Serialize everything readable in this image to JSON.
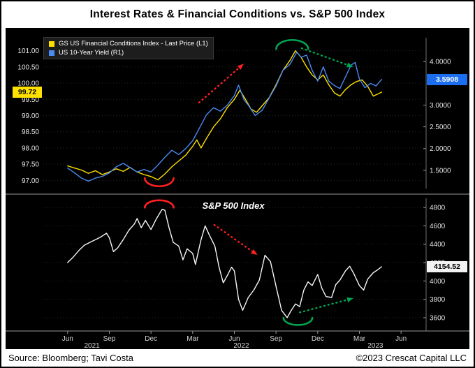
{
  "title": "Interest Rates & Financial Conditions vs. S&P 500 Index",
  "footer": {
    "source": "Source: Bloomberg; Tavi Costa",
    "copyright": "©2023 Crescat Capital LLC"
  },
  "colors": {
    "background": "#000000",
    "axis_text": "#e6e6e6",
    "fci_line": "#ffe100",
    "yield_line": "#4a8af4",
    "spx_line": "#f5f5f5",
    "fci_badge_bg": "#ffe100",
    "yield_badge_bg": "#1b6ef0",
    "spx_badge_bg": "#f2f2f2",
    "red_annotation": "#ff2020",
    "green_annotation": "#00a651"
  },
  "x_axis": {
    "unit": "months since Jun 2021",
    "min": -1.75,
    "max": 25.6,
    "tick_values": [
      0,
      3,
      6,
      9,
      12,
      15,
      18,
      21,
      24
    ],
    "tick_labels": [
      "Jun",
      "Sep",
      "Dec",
      "Mar",
      "Jun",
      "Sep",
      "Dec",
      "Mar",
      "Jun"
    ],
    "years": [
      {
        "label": "2021",
        "x": 1.75
      },
      {
        "label": "2022",
        "x": 12.5
      },
      {
        "label": "2023",
        "x": 22.15
      }
    ]
  },
  "chart_data": [
    {
      "type": "line",
      "panel": "top",
      "grid": "faint-dotted-horizontal",
      "legend_position": "top-left",
      "legend": [
        {
          "label": "GS US Financial Conditions Index - Last Price (L1)",
          "color": "#ffe100"
        },
        {
          "label": "US 10-Year Yield (R1)",
          "color": "#4a8af4"
        }
      ],
      "left_axis": {
        "min": 96.75,
        "max": 101.4,
        "tick_values": [
          101.0,
          100.5,
          100.0,
          99.5,
          99.0,
          98.5,
          98.0,
          97.5,
          97.0
        ],
        "tick_labels": [
          "101.00",
          "100.50",
          "100.00",
          "99.50",
          "99.00",
          "98.50",
          "98.00",
          "97.50",
          "97.00"
        ],
        "last_price": 99.72,
        "last_price_label": "99.72"
      },
      "right_axis": {
        "min": 1.08,
        "max": 4.55,
        "tick_values": [
          4.0,
          3.0,
          2.5,
          2.0,
          1.5
        ],
        "tick_labels": [
          "4.0000",
          "3.0000",
          "2.5000",
          "2.0000",
          "1.5000"
        ],
        "last_price": 3.5908,
        "last_price_label": "3.5908"
      },
      "series": [
        {
          "name": "GS US Financial Conditions Index - Last Price (L1)",
          "axis": "left",
          "color": "#ffe100",
          "points": [
            [
              0,
              97.45
            ],
            [
              0.5,
              97.38
            ],
            [
              1,
              97.32
            ],
            [
              1.5,
              97.22
            ],
            [
              2,
              97.3
            ],
            [
              2.5,
              97.18
            ],
            [
              3,
              97.26
            ],
            [
              3.5,
              97.36
            ],
            [
              4,
              97.28
            ],
            [
              4.5,
              97.4
            ],
            [
              5,
              97.26
            ],
            [
              5.5,
              97.18
            ],
            [
              6,
              97.12
            ],
            [
              6.5,
              97.02
            ],
            [
              7,
              97.2
            ],
            [
              7.5,
              97.42
            ],
            [
              8,
              97.6
            ],
            [
              8.5,
              97.78
            ],
            [
              9,
              98.05
            ],
            [
              9.3,
              98.25
            ],
            [
              9.6,
              98.0
            ],
            [
              10,
              98.3
            ],
            [
              10.5,
              98.65
            ],
            [
              11,
              98.9
            ],
            [
              11.5,
              99.25
            ],
            [
              12,
              99.5
            ],
            [
              12.4,
              99.78
            ],
            [
              12.8,
              99.5
            ],
            [
              13.2,
              99.2
            ],
            [
              13.6,
              99.1
            ],
            [
              14,
              99.3
            ],
            [
              14.5,
              99.55
            ],
            [
              15,
              99.95
            ],
            [
              15.5,
              100.4
            ],
            [
              16,
              100.7
            ],
            [
              16.4,
              101.0
            ],
            [
              16.8,
              100.8
            ],
            [
              17.2,
              100.5
            ],
            [
              17.6,
              100.25
            ],
            [
              18,
              100.1
            ],
            [
              18.4,
              100.25
            ],
            [
              18.8,
              99.95
            ],
            [
              19.2,
              99.7
            ],
            [
              19.6,
              99.6
            ],
            [
              20,
              99.8
            ],
            [
              20.4,
              99.95
            ],
            [
              20.8,
              100.05
            ],
            [
              21.2,
              100.1
            ],
            [
              21.6,
              99.9
            ],
            [
              22,
              99.6
            ],
            [
              22.4,
              99.68
            ],
            [
              22.6,
              99.72
            ]
          ]
        },
        {
          "name": "US 10-Year Yield (R1)",
          "axis": "right",
          "color": "#4a8af4",
          "points": [
            [
              0,
              1.55
            ],
            [
              0.5,
              1.44
            ],
            [
              1,
              1.32
            ],
            [
              1.5,
              1.25
            ],
            [
              2,
              1.32
            ],
            [
              2.5,
              1.36
            ],
            [
              3,
              1.44
            ],
            [
              3.5,
              1.58
            ],
            [
              4,
              1.66
            ],
            [
              4.5,
              1.56
            ],
            [
              5,
              1.46
            ],
            [
              5.5,
              1.52
            ],
            [
              6,
              1.46
            ],
            [
              6.5,
              1.62
            ],
            [
              7,
              1.8
            ],
            [
              7.5,
              1.96
            ],
            [
              8,
              1.86
            ],
            [
              8.5,
              2.0
            ],
            [
              9,
              2.18
            ],
            [
              9.5,
              2.48
            ],
            [
              10,
              2.78
            ],
            [
              10.5,
              2.94
            ],
            [
              11,
              2.86
            ],
            [
              11.5,
              3.0
            ],
            [
              12,
              3.22
            ],
            [
              12.3,
              3.46
            ],
            [
              12.7,
              3.12
            ],
            [
              13,
              3.0
            ],
            [
              13.5,
              2.76
            ],
            [
              14,
              2.88
            ],
            [
              14.5,
              3.16
            ],
            [
              15,
              3.44
            ],
            [
              15.5,
              3.8
            ],
            [
              16,
              3.94
            ],
            [
              16.5,
              4.22
            ],
            [
              16.8,
              4.1
            ],
            [
              17.2,
              4.15
            ],
            [
              17.6,
              3.8
            ],
            [
              18,
              3.55
            ],
            [
              18.4,
              3.88
            ],
            [
              18.8,
              3.55
            ],
            [
              19.2,
              3.45
            ],
            [
              19.6,
              3.38
            ],
            [
              20,
              3.65
            ],
            [
              20.4,
              3.92
            ],
            [
              20.7,
              3.98
            ],
            [
              21,
              3.6
            ],
            [
              21.4,
              3.4
            ],
            [
              21.8,
              3.5
            ],
            [
              22.2,
              3.44
            ],
            [
              22.6,
              3.5908
            ]
          ]
        }
      ],
      "annotations": [
        {
          "kind": "arrow",
          "color": "#ff2020",
          "fx1": 0.41,
          "fy1": 0.43,
          "fx2": 0.515,
          "fy2": 0.2
        },
        {
          "kind": "arrow",
          "color": "#00a651",
          "fx1": 0.68,
          "fy1": 0.07,
          "fx2": 0.8,
          "fy2": 0.18
        },
        {
          "kind": "arc-under",
          "color": "#ff2020",
          "fcx": 0.305,
          "fcy": 0.93,
          "frx": 0.038,
          "fry": 0.055
        },
        {
          "kind": "arc-over",
          "color": "#00a651",
          "fcx": 0.655,
          "fcy": 0.075,
          "frx": 0.042,
          "fry": 0.06
        }
      ]
    },
    {
      "type": "line",
      "panel": "bottom",
      "title": "S&P 500 Index",
      "grid": "faint-dotted-horizontal",
      "right_axis": {
        "min": 3455,
        "max": 4900,
        "tick_values": [
          4800,
          4600,
          4400,
          4200,
          4000,
          3800,
          3600
        ],
        "tick_labels": [
          "4800",
          "4600",
          "4400",
          "4200",
          "4000",
          "3800",
          "3600"
        ],
        "last_price": 4154.52,
        "last_price_label": "4154.52"
      },
      "series": [
        {
          "name": "S&P 500 Index",
          "axis": "right",
          "color": "#f5f5f5",
          "points": [
            [
              0,
              4200
            ],
            [
              0.4,
              4260
            ],
            [
              0.8,
              4330
            ],
            [
              1.2,
              4390
            ],
            [
              1.6,
              4420
            ],
            [
              2,
              4450
            ],
            [
              2.4,
              4480
            ],
            [
              2.8,
              4520
            ],
            [
              3,
              4470
            ],
            [
              3.3,
              4320
            ],
            [
              3.6,
              4360
            ],
            [
              4,
              4450
            ],
            [
              4.4,
              4550
            ],
            [
              4.8,
              4620
            ],
            [
              5,
              4680
            ],
            [
              5.3,
              4580
            ],
            [
              5.6,
              4660
            ],
            [
              6,
              4560
            ],
            [
              6.4,
              4680
            ],
            [
              6.8,
              4780
            ],
            [
              7,
              4770
            ],
            [
              7.3,
              4580
            ],
            [
              7.6,
              4420
            ],
            [
              8,
              4380
            ],
            [
              8.3,
              4230
            ],
            [
              8.6,
              4350
            ],
            [
              9,
              4300
            ],
            [
              9.2,
              4180
            ],
            [
              9.6,
              4450
            ],
            [
              9.9,
              4600
            ],
            [
              10.2,
              4500
            ],
            [
              10.6,
              4380
            ],
            [
              10.9,
              4150
            ],
            [
              11.2,
              3980
            ],
            [
              11.5,
              4060
            ],
            [
              11.8,
              4150
            ],
            [
              12,
              4110
            ],
            [
              12.3,
              3800
            ],
            [
              12.6,
              3680
            ],
            [
              13,
              3820
            ],
            [
              13.4,
              3900
            ],
            [
              13.8,
              4010
            ],
            [
              14.2,
              4280
            ],
            [
              14.6,
              4210
            ],
            [
              15,
              3940
            ],
            [
              15.4,
              3680
            ],
            [
              15.8,
              3600
            ],
            [
              16.1,
              3680
            ],
            [
              16.4,
              3750
            ],
            [
              16.7,
              3720
            ],
            [
              17,
              3900
            ],
            [
              17.3,
              3990
            ],
            [
              17.6,
              3950
            ],
            [
              18,
              4070
            ],
            [
              18.3,
              3920
            ],
            [
              18.6,
              3830
            ],
            [
              19,
              3820
            ],
            [
              19.3,
              3960
            ],
            [
              19.6,
              4010
            ],
            [
              20,
              4110
            ],
            [
              20.3,
              4160
            ],
            [
              20.6,
              4080
            ],
            [
              21,
              3950
            ],
            [
              21.3,
              3900
            ],
            [
              21.6,
              4020
            ],
            [
              22,
              4090
            ],
            [
              22.3,
              4120
            ],
            [
              22.6,
              4154.52
            ]
          ]
        }
      ],
      "annotations": [
        {
          "kind": "arc-over",
          "color": "#ff2020",
          "fcx": 0.305,
          "fcy": 0.07,
          "frx": 0.038,
          "fry": 0.055
        },
        {
          "kind": "arrow",
          "color": "#ff2020",
          "fx1": 0.45,
          "fy1": 0.2,
          "fx2": 0.55,
          "fy2": 0.4
        },
        {
          "kind": "arc-under",
          "color": "#00a651",
          "fcx": 0.67,
          "fcy": 0.9,
          "frx": 0.038,
          "fry": 0.055
        },
        {
          "kind": "arrow",
          "color": "#00a651",
          "fx1": 0.675,
          "fy1": 0.86,
          "fx2": 0.8,
          "fy2": 0.765
        }
      ]
    }
  ]
}
